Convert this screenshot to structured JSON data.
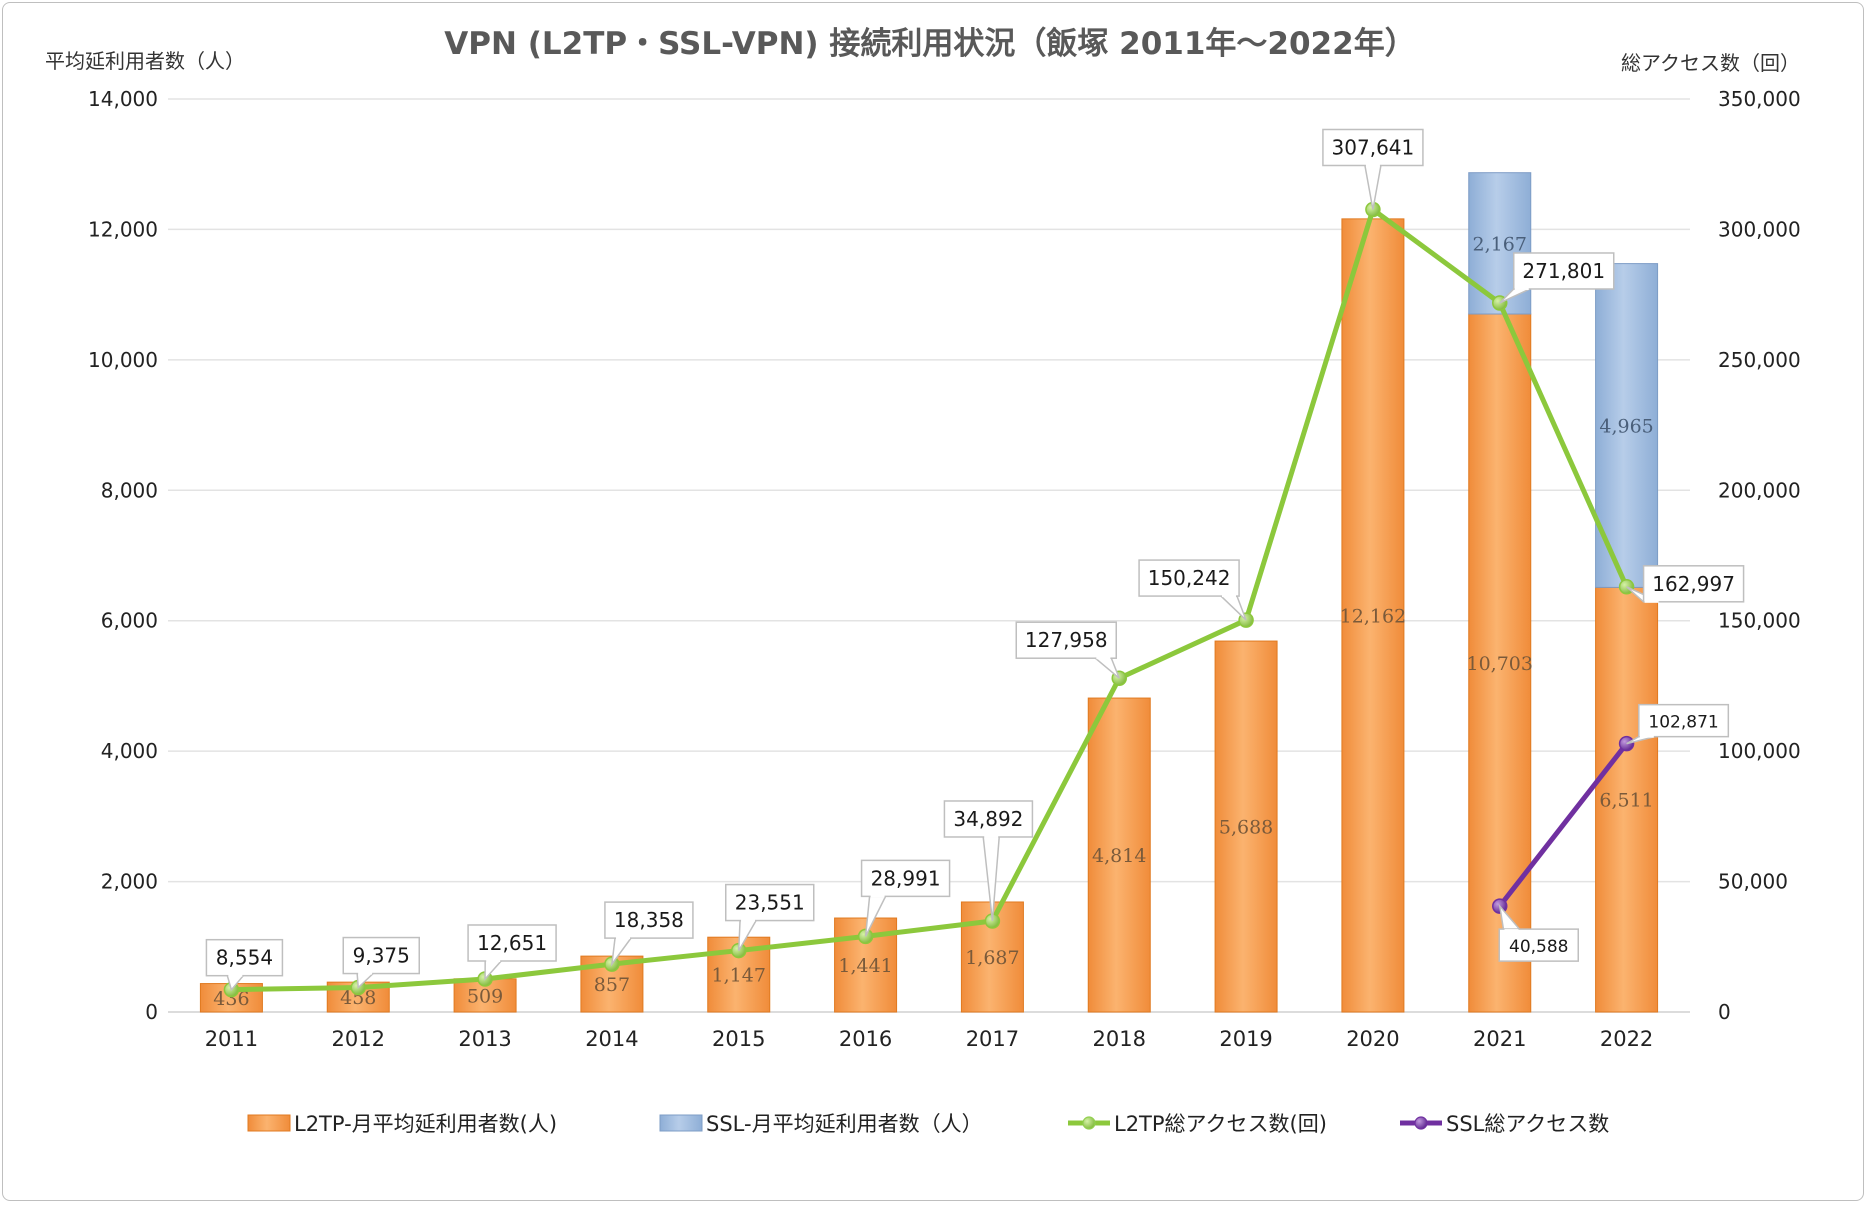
{
  "chart_data": {
    "type": "bar",
    "title": "VPN (L2TP・SSL-VPN) 接続利用状況（飯塚 2011年～2022年）",
    "y_left_label": "平均延利用者数（人）",
    "y_right_label": "総アクセス数（回）",
    "categories": [
      "2011",
      "2012",
      "2013",
      "2014",
      "2015",
      "2016",
      "2017",
      "2018",
      "2019",
      "2020",
      "2021",
      "2022"
    ],
    "y_left_lim": [
      0,
      14000
    ],
    "y_right_lim": [
      0,
      350000
    ],
    "y_left_ticks": [
      "0",
      "2,000",
      "4,000",
      "6,000",
      "8,000",
      "10,000",
      "12,000",
      "14,000"
    ],
    "y_right_ticks": [
      "0",
      "50,000",
      "100,000",
      "150,000",
      "200,000",
      "250,000",
      "300,000",
      "350,000"
    ],
    "grid": true,
    "legend_position": "bottom",
    "series": [
      {
        "name": "L2TP-月平均延利用者数(人)",
        "kind": "bar",
        "axis": "left",
        "color": "#f79646",
        "values": [
          436,
          458,
          509,
          857,
          1147,
          1441,
          1687,
          4814,
          5688,
          12162,
          10703,
          6511
        ],
        "labels": [
          "436",
          "458",
          "509",
          "857",
          "1,147",
          "1,441",
          "1,687",
          "4,814",
          "5,688",
          "12,162",
          "10,703",
          "6,511"
        ]
      },
      {
        "name": "SSL-月平均延利用者数（人）",
        "kind": "bar-stacked",
        "axis": "left",
        "color": "#95b3d7",
        "values": [
          null,
          null,
          null,
          null,
          null,
          null,
          null,
          null,
          null,
          null,
          2167,
          4965
        ],
        "labels": [
          "",
          "",
          "",
          "",
          "",
          "",
          "",
          "",
          "",
          "",
          "2,167",
          "4,965"
        ]
      },
      {
        "name": "L2TP総アクセス数(回)",
        "kind": "line",
        "axis": "right",
        "color": "#92d050",
        "values": [
          8554,
          9375,
          12651,
          18358,
          23551,
          28991,
          34892,
          127958,
          150242,
          307641,
          271801,
          162997
        ],
        "labels": [
          "8,554",
          "9,375",
          "12,651",
          "18,358",
          "23,551",
          "28,991",
          "34,892",
          "127,958",
          "150,242",
          "307,641",
          "271,801",
          "162,997"
        ]
      },
      {
        "name": "SSL総アクセス数",
        "kind": "line",
        "axis": "right",
        "color": "#7030a0",
        "values": [
          null,
          null,
          null,
          null,
          null,
          null,
          null,
          null,
          null,
          null,
          40588,
          102871
        ],
        "labels": [
          "",
          "",
          "",
          "",
          "",
          "",
          "",
          "",
          "",
          "",
          "40,588",
          "102,871"
        ]
      }
    ]
  }
}
